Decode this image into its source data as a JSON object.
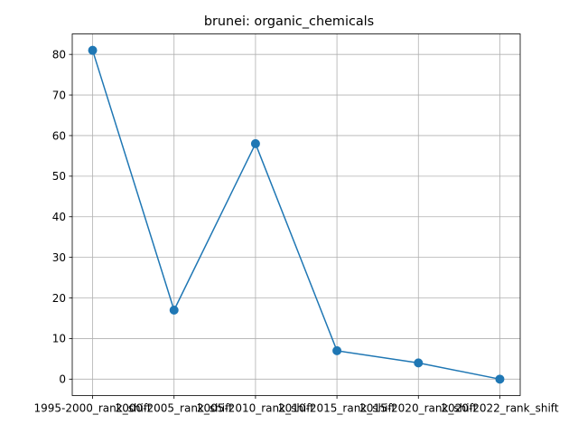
{
  "chart_data": {
    "type": "line",
    "title": "brunei: organic_chemicals",
    "xlabel": "",
    "ylabel": "",
    "categories": [
      "1995-2000_rank_shift",
      "2000-2005_rank_shift",
      "2005-2010_rank_shift",
      "2010-2015_rank_shift",
      "2015-2020_rank_shift",
      "2020-2022_rank_shift"
    ],
    "series": [
      {
        "values": [
          81,
          17,
          58,
          7,
          4,
          0
        ]
      }
    ],
    "ylim": [
      -4.05,
      85.05
    ],
    "yticks": [
      0,
      10,
      20,
      30,
      40,
      50,
      60,
      70,
      80
    ],
    "grid": true,
    "line_color": "#1f77b4",
    "marker": "circle"
  }
}
